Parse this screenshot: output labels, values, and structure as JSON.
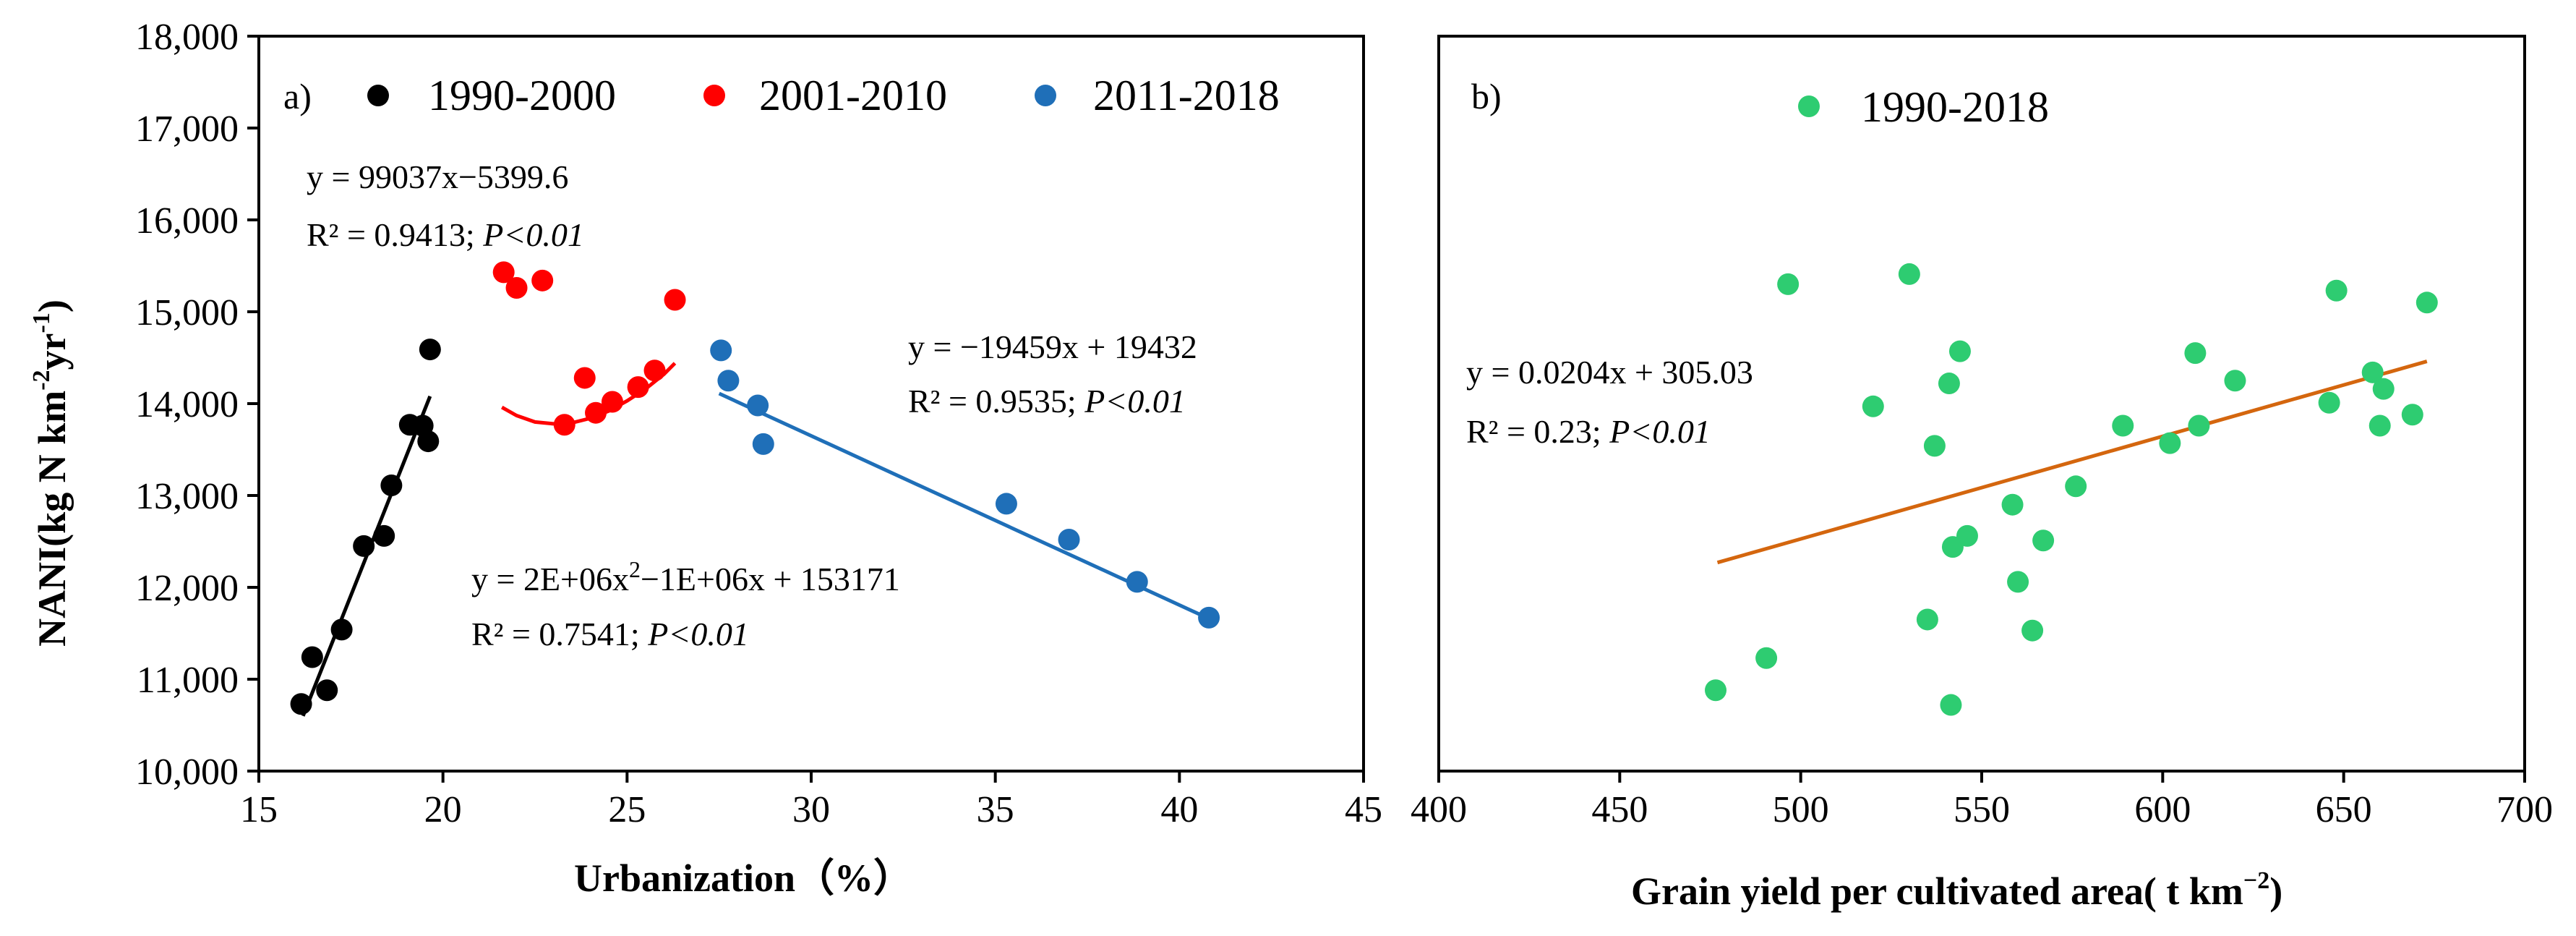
{
  "chart_data": [
    {
      "type": "scatter",
      "panel_label": "a)",
      "xlabel": "Urbanization（%）",
      "ylabel": "NANI(kg N km",
      "ylabel_sup1": "-2",
      "ylabel_mid": "yr",
      "ylabel_sup2": "-1",
      "ylabel_end": ")",
      "xlim": [
        15,
        45
      ],
      "ylim": [
        10000,
        18000
      ],
      "xticks": [
        15,
        20,
        25,
        30,
        35,
        40,
        45
      ],
      "yticks": [
        10000,
        11000,
        12000,
        13000,
        14000,
        15000,
        16000,
        17000,
        18000
      ],
      "ytick_labels": [
        "10,000",
        "11,000",
        "12,000",
        "13,000",
        "14,000",
        "15,000",
        "16,000",
        "17,000",
        "18,000"
      ],
      "legend": [
        {
          "name": "1990-2000",
          "color": "#000000"
        },
        {
          "name": "2001-2010",
          "color": "#ff0000"
        },
        {
          "name": "2011-2018",
          "color": "#1f6fb8"
        }
      ],
      "series": [
        {
          "name": "1990-2000",
          "color": "#000000",
          "x": [
            16.15,
            16.45,
            16.85,
            17.25,
            17.85,
            18.4,
            18.6,
            19.1,
            19.45,
            19.6,
            19.65
          ],
          "y": [
            10730,
            11240,
            10880,
            11540,
            12450,
            12560,
            13110,
            13770,
            13760,
            13590,
            14590
          ],
          "fit": {
            "kind": "linear",
            "x_range": [
              16.2,
              19.65
            ],
            "y_range": [
              10600,
              14080
            ],
            "line_color": "#000000"
          },
          "equation": "y = 99037x−5399.6",
          "r2": "R² = 0.9413;",
          "p": "P<0.01"
        },
        {
          "name": "2001-2010",
          "color": "#ff0000",
          "x": [
            21.65,
            22.0,
            22.7,
            23.3,
            23.85,
            24.15,
            24.6,
            25.3,
            25.75,
            26.3
          ],
          "y": [
            15430,
            15260,
            15340,
            13770,
            14280,
            13900,
            14020,
            14180,
            14360,
            15130
          ],
          "fit": {
            "kind": "quadratic",
            "points_x": [
              21.6,
              22.0,
              22.5,
              23.0,
              23.5,
              24.0,
              24.5,
              25.0,
              25.5,
              26.0,
              26.3
            ],
            "points_y": [
              13960,
              13870,
              13800,
              13780,
              13790,
              13840,
              13920,
              14030,
              14160,
              14320,
              14440
            ],
            "line_color": "#ff0000"
          },
          "equation": "y = 2E+06x",
          "equation_sup": "2",
          "equation_tail": "−1E+06x + 153171",
          "r2": "R² = 0.7541;",
          "p": "P<0.01"
        },
        {
          "name": "2011-2018",
          "color": "#1f6fb8",
          "x": [
            27.55,
            27.75,
            28.55,
            28.7,
            35.3,
            37.0,
            38.85,
            40.8
          ],
          "y": [
            14580,
            14250,
            13980,
            13560,
            12910,
            12520,
            12060,
            11670
          ],
          "fit": {
            "kind": "linear",
            "x_range": [
              27.5,
              40.8
            ],
            "y_range": [
              14110,
              11660
            ],
            "line_color": "#1f6fb8"
          },
          "equation": "y = −19459x + 19432",
          "r2": "R² = 0.9535;",
          "p": "P<0.01"
        }
      ]
    },
    {
      "type": "scatter",
      "panel_label": "b)",
      "xlabel": "Grain yield per cultivated area( t km",
      "xlabel_sup": "−2",
      "xlabel_end": ")",
      "xlim": [
        400,
        700
      ],
      "ylim": [
        10000,
        18000
      ],
      "xticks": [
        400,
        450,
        500,
        550,
        600,
        650,
        700
      ],
      "legend": [
        {
          "name": "1990-2018",
          "color": "#2ecc71"
        }
      ],
      "series": [
        {
          "name": "1990-2018",
          "color": "#2ecc71",
          "x": [
            476.5,
            490.5,
            496.5,
            520.0,
            530.0,
            535.0,
            537.0,
            541.0,
            541.5,
            542.0,
            544.0,
            546.0,
            558.5,
            560.0,
            564.0,
            567.0,
            576.0,
            589.0,
            602.0,
            609.0,
            610.0,
            620.0,
            646.0,
            648.0,
            658.0,
            660.0,
            661.0,
            669.0,
            673.0
          ],
          "y": [
            10880,
            11230,
            15300,
            13970,
            15410,
            11650,
            13540,
            14220,
            10720,
            12440,
            14570,
            12560,
            12900,
            12060,
            11530,
            12510,
            13100,
            13760,
            13570,
            14550,
            13760,
            14250,
            14010,
            15230,
            14340,
            13760,
            14160,
            13880,
            15100
          ],
          "fit": {
            "kind": "linear",
            "x_range": [
              477,
              673
            ],
            "y_range": [
              12270,
              14460
            ],
            "line_color": "#d4660e"
          },
          "equation": "y = 0.0204x + 305.03",
          "r2": "R² = 0.23;",
          "p": "P<0.01"
        }
      ]
    }
  ]
}
